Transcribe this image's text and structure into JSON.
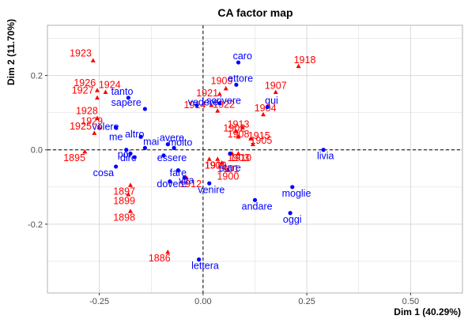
{
  "chart_data": {
    "type": "scatter",
    "title": "CA factor map",
    "xlabel": "Dim 1 (40.29%)",
    "ylabel": "Dim 2 (11.70%)",
    "xlim": [
      -0.375,
      0.625
    ],
    "ylim": [
      -0.385,
      0.335
    ],
    "xticks": [
      -0.25,
      0.0,
      0.25,
      0.5
    ],
    "xtick_labels": [
      "-0.25",
      "0.00",
      "0.25",
      "0.50"
    ],
    "yticks": [
      -0.2,
      0.0,
      0.2
    ],
    "ytick_labels": [
      "-0.2",
      "0.0",
      "0.2"
    ],
    "grid": true,
    "colors": {
      "rows": "#ff0000",
      "cols": "#0000ff",
      "grid": "#d9d9d9",
      "panel_border": "#b3b3b3",
      "zero_line": "#000000"
    },
    "series": [
      {
        "name": "rows",
        "marker": "triangle",
        "color": "#ff0000",
        "points": [
          {
            "label": "1923",
            "x": -0.265,
            "y": 0.24,
            "lx": -0.295,
            "ly": 0.26
          },
          {
            "label": "1926",
            "x": -0.255,
            "y": 0.16,
            "lx": -0.285,
            "ly": 0.18
          },
          {
            "label": "1927",
            "x": -0.255,
            "y": 0.14,
            "lx": -0.29,
            "ly": 0.16
          },
          {
            "label": "1924",
            "x": -0.235,
            "y": 0.155,
            "lx": -0.225,
            "ly": 0.175
          },
          {
            "label": "1928",
            "x": -0.255,
            "y": 0.085,
            "lx": -0.28,
            "ly": 0.105
          },
          {
            "label": "1925",
            "x": -0.262,
            "y": 0.045,
            "lx": -0.295,
            "ly": 0.063
          },
          {
            "label": "1929",
            "x": -0.25,
            "y": 0.06,
            "lx": -0.268,
            "ly": 0.077
          },
          {
            "label": "1895",
            "x": -0.285,
            "y": -0.005,
            "lx": -0.31,
            "ly": -0.022
          },
          {
            "label": "1897",
            "x": -0.175,
            "y": -0.095,
            "lx": -0.19,
            "ly": -0.112
          },
          {
            "label": "1899",
            "x": -0.18,
            "y": -0.12,
            "lx": -0.19,
            "ly": -0.138
          },
          {
            "label": "1898",
            "x": -0.175,
            "y": -0.165,
            "lx": -0.19,
            "ly": -0.182
          },
          {
            "label": "1886",
            "x": -0.085,
            "y": -0.275,
            "lx": -0.105,
            "ly": -0.292
          },
          {
            "label": "1912",
            "x": -0.04,
            "y": -0.075,
            "lx": -0.03,
            "ly": -0.092
          },
          {
            "label": "1900",
            "x": 0.015,
            "y": -0.025,
            "lx": 0.03,
            "ly": -0.042
          },
          {
            "label": "1911",
            "x": 0.035,
            "y": -0.025,
            "lx": 0.03,
            "ly": -0.042
          },
          {
            "label": "1901",
            "x": 0.045,
            "y": -0.035,
            "lx": 0.06,
            "ly": -0.052
          },
          {
            "label": "1900",
            "x": 0.06,
            "y": -0.055,
            "lx": 0.06,
            "ly": -0.072
          },
          {
            "label": "1910",
            "x": 0.07,
            "y": -0.01,
            "lx": 0.09,
            "ly": -0.022
          },
          {
            "label": "1903",
            "x": 0.085,
            "y": -0.01,
            "lx": 0.085,
            "ly": -0.022
          },
          {
            "label": "1914",
            "x": 0.02,
            "y": 0.12,
            "lx": -0.02,
            "ly": 0.12
          },
          {
            "label": "1921",
            "x": 0.04,
            "y": 0.15,
            "lx": 0.01,
            "ly": 0.152
          },
          {
            "label": "1909",
            "x": 0.055,
            "y": 0.165,
            "lx": 0.045,
            "ly": 0.185
          },
          {
            "label": "1922",
            "x": 0.035,
            "y": 0.105,
            "lx": 0.05,
            "ly": 0.122
          },
          {
            "label": "1913",
            "x": 0.095,
            "y": 0.06,
            "lx": 0.085,
            "ly": 0.068
          },
          {
            "label": "1908",
            "x": 0.085,
            "y": 0.035,
            "lx": 0.085,
            "ly": 0.042
          },
          {
            "label": "1902",
            "x": 0.08,
            "y": 0.05,
            "lx": 0.075,
            "ly": 0.058
          },
          {
            "label": "1915",
            "x": 0.115,
            "y": 0.03,
            "lx": 0.135,
            "ly": 0.038
          },
          {
            "label": "1905",
            "x": 0.12,
            "y": 0.015,
            "lx": 0.14,
            "ly": 0.025
          },
          {
            "label": "1904",
            "x": 0.145,
            "y": 0.095,
            "lx": 0.15,
            "ly": 0.112
          },
          {
            "label": "1907",
            "x": 0.175,
            "y": 0.155,
            "lx": 0.175,
            "ly": 0.172
          },
          {
            "label": "1918",
            "x": 0.23,
            "y": 0.225,
            "lx": 0.245,
            "ly": 0.242
          }
        ]
      },
      {
        "name": "cols",
        "marker": "circle",
        "color": "#0000ff",
        "points": [
          {
            "label": "tanto",
            "x": -0.18,
            "y": 0.14,
            "lx": -0.195,
            "ly": 0.157
          },
          {
            "label": "sapere",
            "x": -0.14,
            "y": 0.11,
            "lx": -0.185,
            "ly": 0.127
          },
          {
            "label": "volere",
            "x": -0.21,
            "y": 0.06,
            "lx": -0.235,
            "ly": 0.062
          },
          {
            "label": "altro",
            "x": -0.15,
            "y": 0.035,
            "lx": -0.165,
            "ly": 0.042
          },
          {
            "label": "me",
            "x": -0.185,
            "y": 0.0,
            "lx": -0.21,
            "ly": 0.035
          },
          {
            "label": "mai",
            "x": -0.14,
            "y": 0.005,
            "lx": -0.125,
            "ly": 0.022
          },
          {
            "label": "avere",
            "x": -0.085,
            "y": 0.015,
            "lx": -0.075,
            "ly": 0.032
          },
          {
            "label": "molto",
            "x": -0.07,
            "y": 0.005,
            "lx": -0.055,
            "ly": 0.02
          },
          {
            "label": "poi",
            "x": -0.175,
            "y": -0.01,
            "lx": -0.19,
            "ly": -0.012
          },
          {
            "label": "dire",
            "x": -0.165,
            "y": -0.02,
            "lx": -0.18,
            "ly": -0.022
          },
          {
            "label": "essere",
            "x": -0.095,
            "y": -0.015,
            "lx": -0.075,
            "ly": -0.022
          },
          {
            "label": "cosa",
            "x": -0.21,
            "y": -0.045,
            "lx": -0.24,
            "ly": -0.062
          },
          {
            "label": "fare",
            "x": -0.06,
            "y": -0.055,
            "lx": -0.06,
            "ly": -0.062
          },
          {
            "label": "vita",
            "x": -0.045,
            "y": -0.075,
            "lx": -0.04,
            "ly": -0.082
          },
          {
            "label": "dovere",
            "x": -0.08,
            "y": -0.085,
            "lx": -0.075,
            "ly": -0.092
          },
          {
            "label": "vedere",
            "x": -0.015,
            "y": 0.12,
            "lx": 0.0,
            "ly": 0.128
          },
          {
            "label": "scrivere",
            "x": 0.04,
            "y": 0.125,
            "lx": 0.05,
            "ly": 0.132
          },
          {
            "label": "caro",
            "x": 0.085,
            "y": 0.235,
            "lx": 0.095,
            "ly": 0.252
          },
          {
            "label": "ettore",
            "x": 0.08,
            "y": 0.175,
            "lx": 0.09,
            "ly": 0.192
          },
          {
            "label": "qui",
            "x": 0.155,
            "y": 0.115,
            "lx": 0.165,
            "ly": 0.132
          },
          {
            "label": "stare",
            "x": 0.065,
            "y": -0.01,
            "lx": 0.065,
            "ly": -0.048
          },
          {
            "label": "venire",
            "x": 0.015,
            "y": -0.09,
            "lx": 0.02,
            "ly": -0.108
          },
          {
            "label": "lettera",
            "x": -0.01,
            "y": -0.295,
            "lx": 0.005,
            "ly": -0.312
          },
          {
            "label": "andare",
            "x": 0.125,
            "y": -0.135,
            "lx": 0.13,
            "ly": -0.152
          },
          {
            "label": "moglie",
            "x": 0.215,
            "y": -0.1,
            "lx": 0.225,
            "ly": -0.117
          },
          {
            "label": "oggi",
            "x": 0.21,
            "y": -0.17,
            "lx": 0.215,
            "ly": -0.187
          },
          {
            "label": "livia",
            "x": 0.29,
            "y": 0.0,
            "lx": 0.295,
            "ly": -0.017
          }
        ]
      }
    ]
  }
}
